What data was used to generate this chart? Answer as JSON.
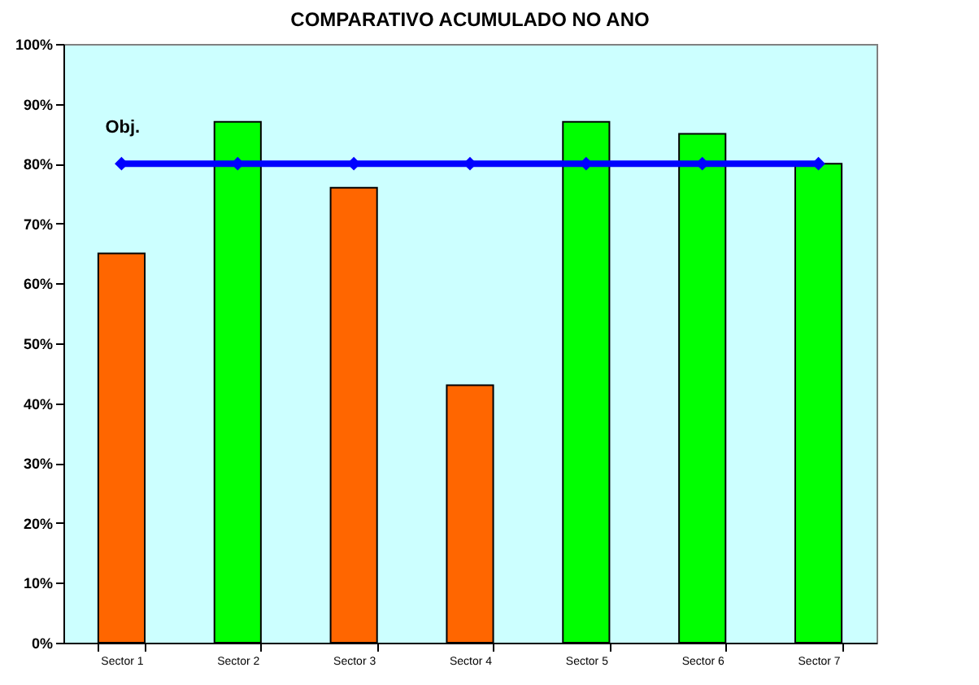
{
  "chart_data": {
    "type": "bar",
    "title": "COMPARATIVO ACUMULADO NO ANO",
    "categories": [
      "Sector 1",
      "Sector 2",
      "Sector 3",
      "Sector 4",
      "Sector 5",
      "Sector 6",
      "Sector 7"
    ],
    "series": [
      {
        "type": "bar",
        "colors": [
          "#ff6600",
          "#00ff00",
          "#ff6600",
          "#ff6600",
          "#00ff00",
          "#00ff00",
          "#00ff00"
        ],
        "values": [
          65,
          87,
          76,
          43,
          87,
          85,
          80
        ]
      },
      {
        "type": "line",
        "name": "Obj.",
        "color": "#0000ff",
        "values": [
          80,
          80,
          80,
          80,
          80,
          80,
          80
        ]
      }
    ],
    "ylim": [
      0,
      100
    ],
    "yticks": [
      {
        "value": 0,
        "label": "0%"
      },
      {
        "value": 10,
        "label": "10%"
      },
      {
        "value": 20,
        "label": "20%"
      },
      {
        "value": 30,
        "label": "30%"
      },
      {
        "value": 40,
        "label": "40%"
      },
      {
        "value": 50,
        "label": "50%"
      },
      {
        "value": 60,
        "label": "60%"
      },
      {
        "value": 70,
        "label": "70%"
      },
      {
        "value": 80,
        "label": "80%"
      },
      {
        "value": 90,
        "label": "90%"
      },
      {
        "value": 100,
        "label": "100%"
      }
    ],
    "marker": "diamond"
  }
}
